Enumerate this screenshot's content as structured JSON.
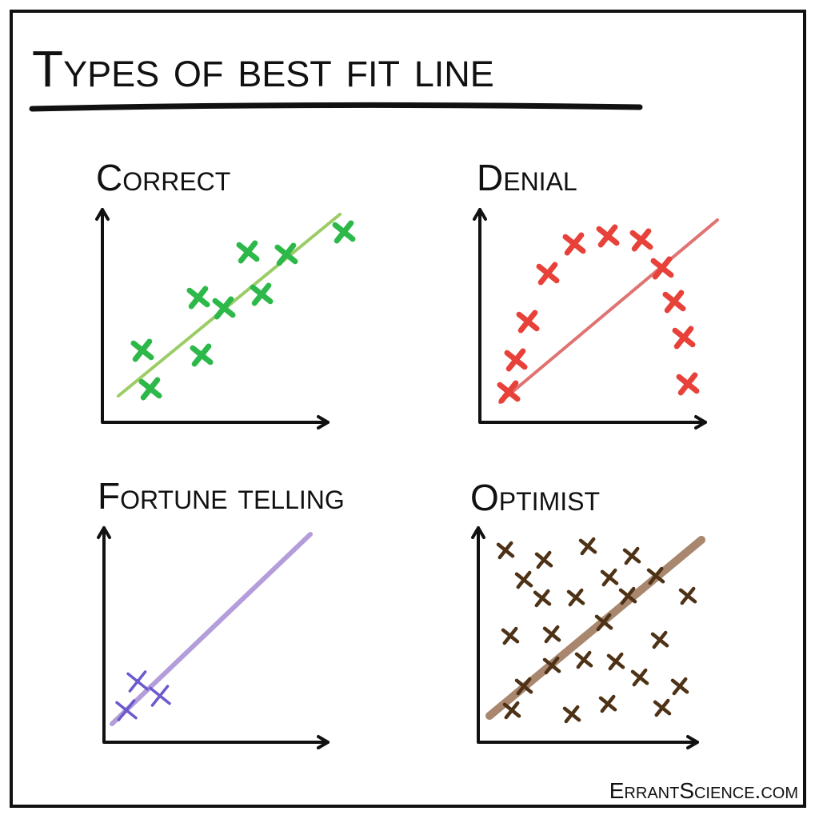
{
  "title": "Types of best fit line",
  "panels": [
    {
      "title": "Correct"
    },
    {
      "title": "Denial"
    },
    {
      "title": "Fortune telling"
    },
    {
      "title": "Optimist"
    }
  ],
  "credit": "ErrantScience.com"
}
